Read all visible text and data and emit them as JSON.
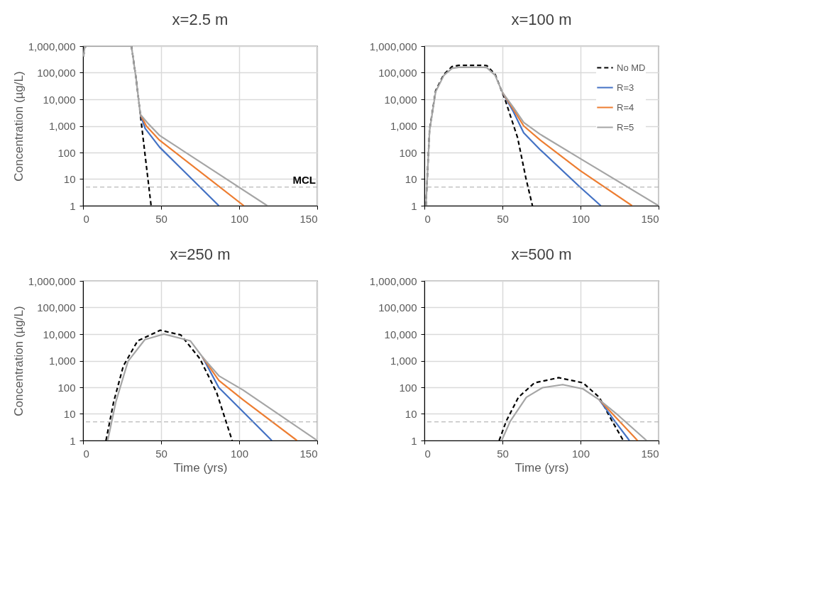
{
  "chart_data": [
    {
      "type": "line",
      "title": "x=2.5 m",
      "ylabel": "Concentration (µg/L)",
      "log": true,
      "grid": true,
      "xlim": [
        0,
        150
      ],
      "xticks": [
        0,
        50,
        100,
        150
      ],
      "ylim": [
        1,
        1000000
      ],
      "yticks": [
        1,
        10,
        100,
        {
          "value": 1000,
          "label": "1,000"
        },
        {
          "value": 10000,
          "label": "10,000"
        },
        {
          "value": 100000,
          "label": "100,000"
        },
        {
          "value": 1000000,
          "label": "1,000,000"
        }
      ],
      "ref_lines": [
        {
          "axis": "y",
          "value": 5,
          "label": "MCL",
          "color": "#a6a6a6",
          "line_style": "dashed"
        }
      ],
      "series": [
        {
          "type": "line",
          "color": "#000000",
          "line_style": "dashed",
          "x": [
            0.3,
            1,
            2,
            31,
            34,
            36.7,
            40,
            43.6
          ],
          "values": [
            400000,
            900000,
            1000000,
            1000000,
            60000,
            2700,
            60,
            1
          ]
        },
        {
          "type": "line",
          "color": "#4472c4",
          "line_style": "solid",
          "x": [
            36.7,
            39.8,
            49,
            87
          ],
          "values": [
            2700,
            800,
            160,
            1
          ]
        },
        {
          "type": "line",
          "color": "#ed7d31",
          "line_style": "solid",
          "x": [
            36.7,
            40.5,
            49,
            103
          ],
          "values": [
            2700,
            1000,
            290,
            1
          ]
        },
        {
          "type": "line",
          "color": "#a5a5a5",
          "line_style": "solid",
          "x": [
            0.3,
            1,
            2,
            31,
            34,
            36.7,
            41.3,
            49,
            118
          ],
          "values": [
            400000,
            900000,
            1000000,
            1000000,
            60000,
            2700,
            1300,
            440,
            1
          ]
        }
      ]
    },
    {
      "type": "line",
      "title": "x=100 m",
      "log": true,
      "grid": true,
      "legend": "top right",
      "xlim": [
        0,
        150
      ],
      "xticks": [
        0,
        50,
        100,
        150
      ],
      "ylim": [
        1,
        1000000
      ],
      "yticks": [
        1,
        10,
        100,
        {
          "value": 1000,
          "label": "1,000"
        },
        {
          "value": 10000,
          "label": "10,000"
        },
        {
          "value": 100000,
          "label": "100,000"
        },
        {
          "value": 1000000,
          "label": "1,000,000"
        }
      ],
      "ref_lines": [
        {
          "axis": "y",
          "value": 5,
          "color": "#a6a6a6",
          "line_style": "dashed"
        }
      ],
      "series": [
        {
          "type": "line",
          "name": "No MD",
          "color": "#000000",
          "line_style": "dashed",
          "x": [
            1,
            3.3,
            7.2,
            12.5,
            17.7,
            22,
            38,
            40,
            45.3,
            51.8,
            59.7,
            65,
            69.2
          ],
          "values": [
            1,
            700,
            21000,
            87000,
            170000,
            190000,
            190000,
            185000,
            87000,
            9300,
            360,
            11,
            1
          ]
        },
        {
          "type": "line",
          "name": "R=3",
          "color": "#4472c4",
          "line_style": "solid",
          "x": [
            50,
            57,
            63.6,
            74,
            99.7,
            113
          ],
          "values": [
            18000,
            3400,
            550,
            130,
            5,
            1
          ]
        },
        {
          "type": "line",
          "name": "R=4",
          "color": "#ed7d31",
          "line_style": "solid",
          "x": [
            50,
            57,
            63.6,
            74,
            99.7,
            133
          ],
          "values": [
            18000,
            4200,
            1000,
            300,
            21,
            1
          ]
        },
        {
          "type": "line",
          "name": "R=5",
          "color": "#a5a5a5",
          "line_style": "solid",
          "x": [
            1,
            3.3,
            7.2,
            12.5,
            17.7,
            22,
            38,
            40,
            45.3,
            50,
            57,
            63.6,
            74,
            99.7,
            150
          ],
          "values": [
            1,
            650,
            19000,
            80000,
            145000,
            160000,
            160000,
            155000,
            80000,
            18000,
            5000,
            1350,
            490,
            60,
            1
          ]
        }
      ]
    },
    {
      "type": "line",
      "title": "x=250 m",
      "xlabel": "Time (yrs)",
      "ylabel": "Concentration (µg/L)",
      "log": true,
      "grid": true,
      "xlim": [
        0,
        150
      ],
      "xticks": [
        0,
        50,
        100,
        150
      ],
      "ylim": [
        1,
        1000000
      ],
      "yticks": [
        1,
        10,
        100,
        {
          "value": 1000,
          "label": "1,000"
        },
        {
          "value": 10000,
          "label": "10,000"
        },
        {
          "value": 100000,
          "label": "100,000"
        },
        {
          "value": 1000000,
          "label": "1,000,000"
        }
      ],
      "ref_lines": [
        {
          "axis": "y",
          "value": 5,
          "color": "#a6a6a6",
          "line_style": "dashed"
        }
      ],
      "series": [
        {
          "type": "line",
          "color": "#000000",
          "line_style": "dashed",
          "x": [
            14.7,
            19.6,
            25.8,
            35,
            49.5,
            62.6,
            74.8,
            85.6,
            95.5
          ],
          "values": [
            1,
            28,
            630,
            5600,
            14000,
            9300,
            1200,
            63,
            1
          ]
        },
        {
          "type": "line",
          "color": "#4472c4",
          "line_style": "solid",
          "x": [
            76.4,
            87,
            102.5,
            120.9
          ],
          "values": [
            1400,
            97,
            12,
            1
          ]
        },
        {
          "type": "line",
          "color": "#ed7d31",
          "line_style": "solid",
          "x": [
            76.4,
            87,
            102.5,
            137
          ],
          "values": [
            1400,
            180,
            34,
            1
          ]
        },
        {
          "type": "line",
          "color": "#a5a5a5",
          "line_style": "solid",
          "x": [
            15.8,
            21,
            28.8,
            39.6,
            51.8,
            68.7,
            76.4,
            87,
            102.5,
            150
          ],
          "values": [
            1,
            28,
            950,
            6200,
            10000,
            5600,
            1400,
            270,
            79,
            1
          ]
        }
      ]
    },
    {
      "type": "line",
      "title": "x=500 m",
      "xlabel": "Time (yrs)",
      "log": true,
      "grid": true,
      "xlim": [
        0,
        150
      ],
      "xticks": [
        0,
        50,
        100,
        150
      ],
      "ylim": [
        1,
        1000000
      ],
      "yticks": [
        1,
        10,
        100,
        {
          "value": 1000,
          "label": "1,000"
        },
        {
          "value": 10000,
          "label": "10,000"
        },
        {
          "value": 100000,
          "label": "100,000"
        },
        {
          "value": 1000000,
          "label": "1,000,000"
        }
      ],
      "ref_lines": [
        {
          "axis": "y",
          "value": 5,
          "color": "#a6a6a6",
          "line_style": "dashed"
        }
      ],
      "series": [
        {
          "type": "line",
          "color": "#000000",
          "line_style": "dashed",
          "x": [
            47.9,
            52.4,
            60.2,
            70.5,
            86,
            101.6,
            112,
            120.3,
            127.4
          ],
          "values": [
            1,
            5.3,
            42,
            147,
            230,
            147,
            42,
            5.3,
            1
          ]
        },
        {
          "type": "line",
          "color": "#4472c4",
          "line_style": "solid",
          "x": [
            112,
            122,
            131.3
          ],
          "values": [
            34,
            5.3,
            1
          ]
        },
        {
          "type": "line",
          "color": "#ed7d31",
          "line_style": "solid",
          "x": [
            112,
            123.5,
            136.5
          ],
          "values": [
            34,
            6.5,
            1
          ]
        },
        {
          "type": "line",
          "color": "#a5a5a5",
          "line_style": "solid",
          "x": [
            49.5,
            55,
            65.3,
            75.7,
            88.6,
            101.6,
            112,
            124,
            142.3
          ],
          "values": [
            1,
            5.3,
            42,
            97,
            126,
            87,
            34,
            9,
            1
          ]
        }
      ]
    }
  ]
}
